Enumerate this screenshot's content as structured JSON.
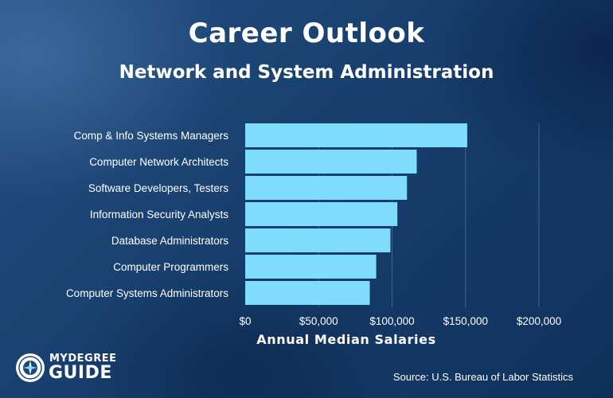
{
  "header": {
    "title": "Career Outlook",
    "subtitle": "Network and System Administration"
  },
  "chart_data": {
    "type": "bar",
    "orientation": "horizontal",
    "categories": [
      "Comp & Info Systems Managers",
      "Computer Network Architects",
      "Software Developers, Testers",
      "Information Security Analysts",
      "Database Administrators",
      "Computer Programmers",
      "Computer Systems Administrators"
    ],
    "values": [
      151150,
      116780,
      110140,
      103590,
      98860,
      89190,
      84810
    ],
    "xlabel": "Annual Median Salaries",
    "ylabel": "",
    "xlim": [
      0,
      200000
    ],
    "ticks": [
      {
        "value": 0,
        "label": "$0"
      },
      {
        "value": 50000,
        "label": "$50,000"
      },
      {
        "value": 100000,
        "label": "$100,000"
      },
      {
        "value": 150000,
        "label": "$150,000"
      },
      {
        "value": 200000,
        "label": "$200,000"
      }
    ],
    "grid": true,
    "bar_color": "#7fdcfc",
    "grid_color": "#3f6690"
  },
  "footer": {
    "source": "Source: U.S. Bureau of Labor Statistics",
    "logo_top": "MYDEGREE",
    "logo_bottom": "GUIDE"
  }
}
